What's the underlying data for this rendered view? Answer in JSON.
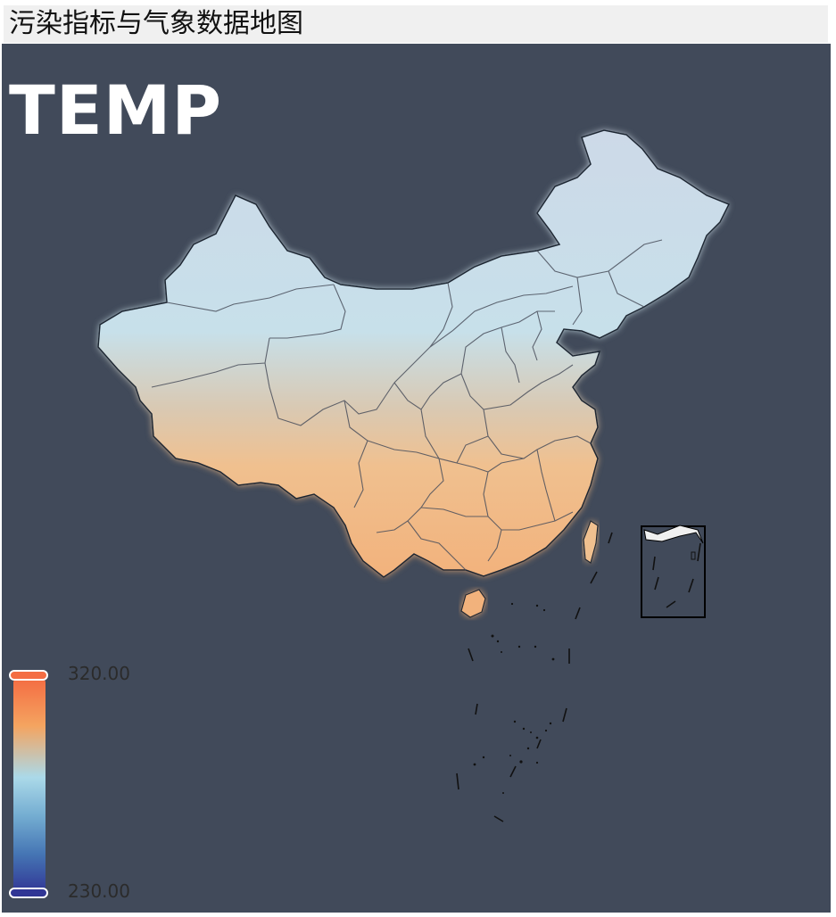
{
  "page": {
    "title": "污染指标与气象数据地图"
  },
  "map": {
    "variable": "TEMP",
    "colors": {
      "background": "#414a5a",
      "cold": "#313695",
      "cool": "#74add1",
      "mid": "#abd9e9",
      "warm": "#f4a460",
      "hot": "#f46d43"
    }
  },
  "legend": {
    "max_label": "320.00",
    "min_label": "230.00",
    "max_value": 320,
    "min_value": 230
  }
}
